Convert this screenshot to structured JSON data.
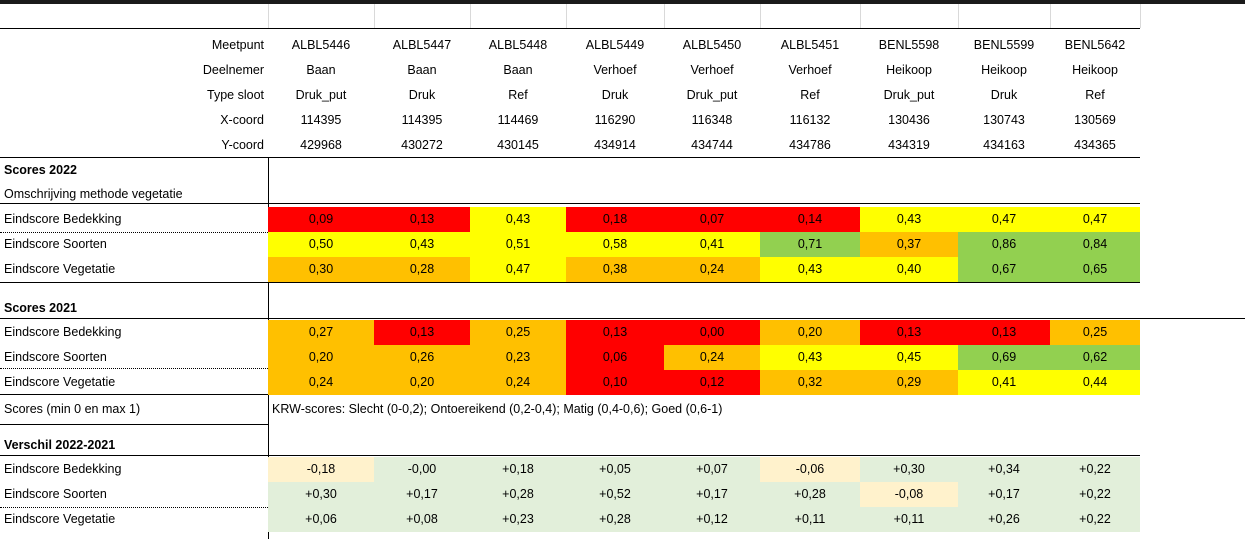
{
  "header": {
    "labels": [
      "Meetpunt",
      "Deelnemer",
      "Type sloot",
      "X-coord",
      "Y-coord"
    ],
    "rows": [
      [
        "ALBL5446",
        "ALBL5447",
        "ALBL5448",
        "ALBL5449",
        "ALBL5450",
        "ALBL5451",
        "BENL5598",
        "BENL5599",
        "BENL5642"
      ],
      [
        "Baan",
        "Baan",
        "Baan",
        "Verhoef",
        "Verhoef",
        "Verhoef",
        "Heikoop",
        "Heikoop",
        "Heikoop"
      ],
      [
        "Druk_put",
        "Druk",
        "Ref",
        "Druk",
        "Druk_put",
        "Ref",
        "Druk_put",
        "Druk",
        "Ref"
      ],
      [
        "114395",
        "114395",
        "114469",
        "116290",
        "116348",
        "116132",
        "130436",
        "130743",
        "130569"
      ],
      [
        "429968",
        "430272",
        "430145",
        "434914",
        "434744",
        "434786",
        "434319",
        "434163",
        "434365"
      ]
    ]
  },
  "colors": {
    "red": "#ff0000",
    "orange": "#ffc000",
    "yellow": "#ffff00",
    "green": "#92d050",
    "light_green": "#e2efda",
    "light_orange": "#fff2cc"
  },
  "scores_2022": {
    "title": "Scores 2022",
    "subtitle": "Omschrijving methode vegetatie",
    "rows": [
      {
        "label": "Eindscore Bedekking",
        "values": [
          "0,09",
          "0,13",
          "0,43",
          "0,18",
          "0,07",
          "0,14",
          "0,43",
          "0,47",
          "0,47"
        ],
        "colors": [
          "red",
          "red",
          "yellow",
          "red",
          "red",
          "red",
          "yellow",
          "yellow",
          "yellow"
        ]
      },
      {
        "label": "Eindscore Soorten",
        "values": [
          "0,50",
          "0,43",
          "0,51",
          "0,58",
          "0,41",
          "0,71",
          "0,37",
          "0,86",
          "0,84"
        ],
        "colors": [
          "yellow",
          "yellow",
          "yellow",
          "yellow",
          "yellow",
          "green",
          "orange",
          "green",
          "green"
        ]
      },
      {
        "label": "Eindscore Vegetatie",
        "values": [
          "0,30",
          "0,28",
          "0,47",
          "0,38",
          "0,24",
          "0,43",
          "0,40",
          "0,67",
          "0,65"
        ],
        "colors": [
          "orange",
          "orange",
          "yellow",
          "orange",
          "orange",
          "yellow",
          "yellow",
          "green",
          "green"
        ]
      }
    ]
  },
  "scores_2021": {
    "title": "Scores 2021",
    "rows": [
      {
        "label": "Eindscore Bedekking",
        "values": [
          "0,27",
          "0,13",
          "0,25",
          "0,13",
          "0,00",
          "0,20",
          "0,13",
          "0,13",
          "0,25"
        ],
        "colors": [
          "orange",
          "red",
          "orange",
          "red",
          "red",
          "orange",
          "red",
          "red",
          "orange"
        ]
      },
      {
        "label": "Eindscore Soorten",
        "values": [
          "0,20",
          "0,26",
          "0,23",
          "0,06",
          "0,24",
          "0,43",
          "0,45",
          "0,69",
          "0,62"
        ],
        "colors": [
          "orange",
          "orange",
          "orange",
          "red",
          "orange",
          "yellow",
          "yellow",
          "green",
          "green"
        ]
      },
      {
        "label": "Eindscore Vegetatie",
        "values": [
          "0,24",
          "0,20",
          "0,24",
          "0,10",
          "0,12",
          "0,32",
          "0,29",
          "0,41",
          "0,44"
        ],
        "colors": [
          "orange",
          "orange",
          "orange",
          "red",
          "red",
          "orange",
          "orange",
          "yellow",
          "yellow"
        ]
      }
    ]
  },
  "legend": {
    "label": "Scores (min 0 en max 1)",
    "text": "KRW-scores: Slecht (0-0,2); Ontoereikend (0,2-0,4); Matig (0,4-0,6); Goed (0,6-1)"
  },
  "difference": {
    "title": "Verschil 2022-2021",
    "rows": [
      {
        "label": "Eindscore Bedekking",
        "values": [
          "-0,18",
          "-0,00",
          "+0,18",
          "+0,05",
          "+0,07",
          "-0,06",
          "+0,30",
          "+0,34",
          "+0,22"
        ],
        "colors": [
          "light_orange",
          "light_green",
          "light_green",
          "light_green",
          "light_green",
          "light_orange",
          "light_green",
          "light_green",
          "light_green"
        ]
      },
      {
        "label": "Eindscore Soorten",
        "values": [
          "+0,30",
          "+0,17",
          "+0,28",
          "+0,52",
          "+0,17",
          "+0,28",
          "-0,08",
          "+0,17",
          "+0,22"
        ],
        "colors": [
          "light_green",
          "light_green",
          "light_green",
          "light_green",
          "light_green",
          "light_green",
          "light_orange",
          "light_green",
          "light_green"
        ]
      },
      {
        "label": "Eindscore Vegetatie",
        "values": [
          "+0,06",
          "+0,08",
          "+0,23",
          "+0,28",
          "+0,12",
          "+0,11",
          "+0,11",
          "+0,26",
          "+0,22"
        ],
        "colors": [
          "light_green",
          "light_green",
          "light_green",
          "light_green",
          "light_green",
          "light_green",
          "light_green",
          "light_green",
          "light_green"
        ]
      }
    ]
  }
}
